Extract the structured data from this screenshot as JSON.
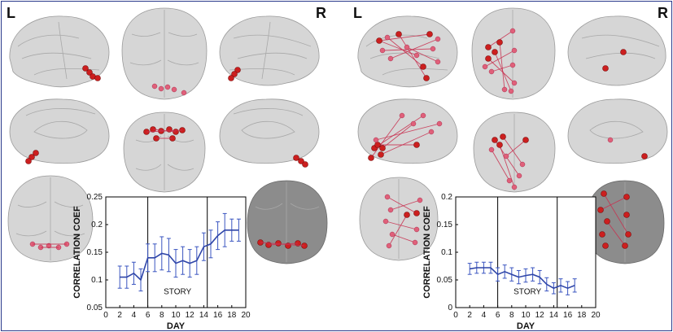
{
  "panels": [
    {
      "left_label": "L",
      "right_label": "R",
      "chart_data": {
        "type": "line",
        "x": [
          2,
          3,
          4,
          5,
          6,
          7,
          8,
          9,
          10,
          11,
          12,
          13,
          14,
          15,
          16,
          17,
          18,
          19
        ],
        "series": [
          {
            "values": [
              0.105,
              0.105,
              0.112,
              0.1,
              0.14,
              0.14,
              0.148,
              0.145,
              0.13,
              0.135,
              0.13,
              0.135,
              0.16,
              0.165,
              0.18,
              0.19,
              0.19,
              0.19
            ],
            "errors": [
              0.02,
              0.02,
              0.02,
              0.02,
              0.025,
              0.025,
              0.03,
              0.03,
              0.025,
              0.025,
              0.025,
              0.025,
              0.025,
              0.025,
              0.025,
              0.03,
              0.02,
              0.02
            ]
          }
        ],
        "xlabel": "DAY",
        "ylabel": "CORRELATION COEF",
        "xlim": [
          0,
          20
        ],
        "ylim": [
          0.05,
          0.25
        ],
        "xticks": [
          "0",
          "2",
          "4",
          "6",
          "8",
          "10",
          "12",
          "14",
          "16",
          "18",
          "20"
        ],
        "yticks": [
          "0.05",
          "0.1",
          "0.15",
          "0.2",
          "0.25"
        ],
        "band": {
          "start": 6,
          "end": 14.5,
          "label": "STORY"
        },
        "color": "#2e45a8"
      }
    },
    {
      "left_label": "L",
      "right_label": "R",
      "chart_data": {
        "type": "line",
        "x": [
          2,
          3,
          4,
          5,
          6,
          7,
          8,
          9,
          10,
          11,
          12,
          13,
          14,
          15,
          16,
          17
        ],
        "series": [
          {
            "values": [
              0.07,
              0.072,
              0.072,
              0.072,
              0.06,
              0.065,
              0.06,
              0.055,
              0.058,
              0.06,
              0.055,
              0.042,
              0.035,
              0.04,
              0.035,
              0.04
            ],
            "errors": [
              0.01,
              0.01,
              0.01,
              0.01,
              0.012,
              0.012,
              0.012,
              0.012,
              0.012,
              0.012,
              0.012,
              0.012,
              0.01,
              0.012,
              0.012,
              0.012
            ]
          }
        ],
        "xlabel": "DAY",
        "ylabel": "CORRELATION COEF",
        "xlim": [
          0,
          20
        ],
        "ylim": [
          0,
          0.2
        ],
        "xticks": [
          "0",
          "2",
          "4",
          "6",
          "8",
          "10",
          "12",
          "14",
          "16",
          "18",
          "20"
        ],
        "yticks": [
          "0",
          "0.05",
          "0.1",
          "0.15",
          "0.2"
        ],
        "band": {
          "start": 6,
          "end": 14.5,
          "label": "STORY"
        },
        "color": "#2e45a8"
      }
    }
  ]
}
